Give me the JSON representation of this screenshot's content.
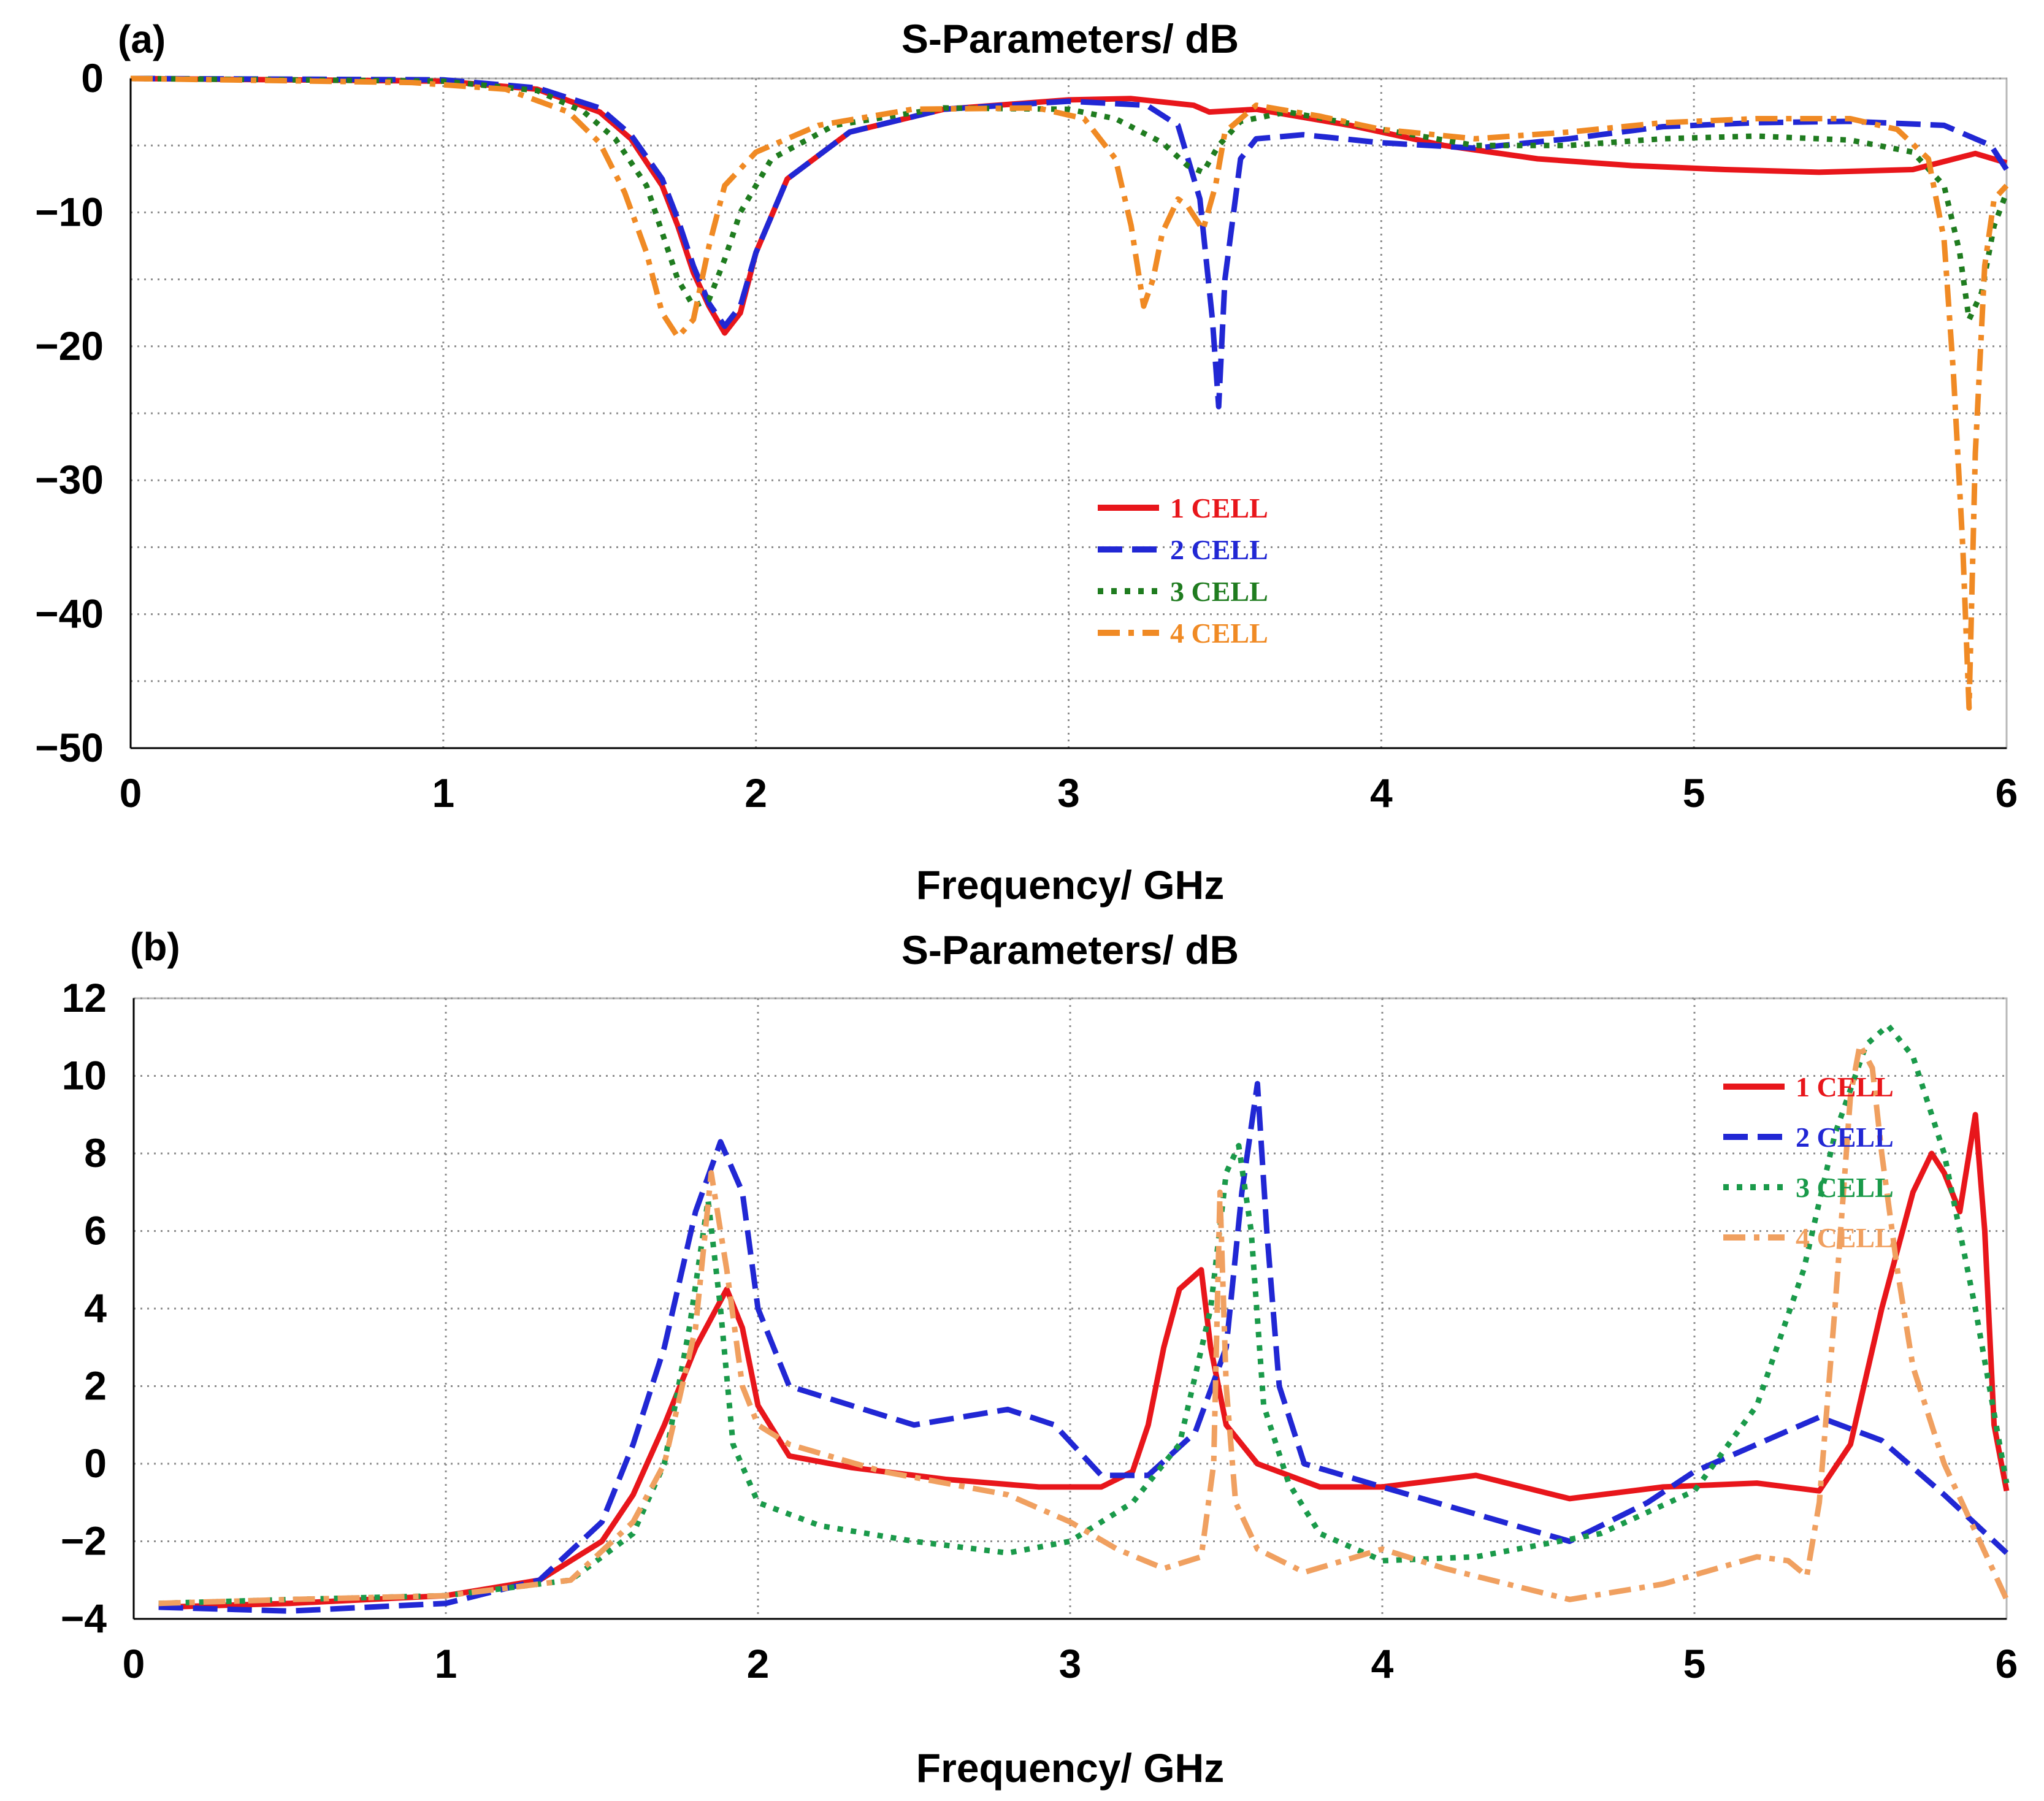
{
  "chart_data": [
    {
      "type": "line",
      "panel_label": "(a)",
      "title": "S-Parameters/ dB",
      "xlabel": "Frequency/ GHz",
      "ylabel": "",
      "xlim": [
        0,
        6
      ],
      "ylim": [
        -50,
        0
      ],
      "xticks": [
        0,
        1,
        2,
        3,
        4,
        5,
        6
      ],
      "xtick_labels": [
        "0",
        "1",
        "2",
        "3",
        "4",
        "5",
        "6"
      ],
      "yticks": [
        0,
        -10,
        -20,
        -30,
        -40,
        -50
      ],
      "ytick_labels": [
        "0",
        "−10",
        "−20",
        "−30",
        "−40",
        "−50"
      ],
      "ygrid": [
        -5,
        -15,
        -25,
        -35,
        -45
      ],
      "grid": true,
      "legend_position": "center-right",
      "series": [
        {
          "name": "1 CELL",
          "color": "#e8161b",
          "dash": "solid",
          "x": [
            0,
            1.0,
            1.3,
            1.5,
            1.6,
            1.7,
            1.75,
            1.8,
            1.85,
            1.9,
            1.95,
            2.0,
            2.1,
            2.3,
            2.6,
            3.0,
            3.2,
            3.4,
            3.45,
            3.6,
            3.9,
            4.2,
            4.5,
            4.8,
            5.1,
            5.4,
            5.7,
            5.9,
            6.0
          ],
          "y": [
            0,
            -0.2,
            -0.8,
            -2.5,
            -4.5,
            -8.0,
            -11.0,
            -14.5,
            -17.0,
            -19.0,
            -17.5,
            -13.0,
            -7.5,
            -4.0,
            -2.3,
            -1.6,
            -1.5,
            -2.0,
            -2.5,
            -2.3,
            -3.5,
            -5.0,
            -6.0,
            -6.5,
            -6.8,
            -7.0,
            -6.8,
            -5.6,
            -6.3
          ]
        },
        {
          "name": "2 CELL",
          "color": "#2127d4",
          "dash": "dashed",
          "x": [
            0,
            1.0,
            1.3,
            1.5,
            1.6,
            1.7,
            1.75,
            1.8,
            1.85,
            1.9,
            1.95,
            2.0,
            2.1,
            2.3,
            2.6,
            3.0,
            3.25,
            3.35,
            3.42,
            3.46,
            3.48,
            3.5,
            3.55,
            3.6,
            3.75,
            4.0,
            4.3,
            4.6,
            4.9,
            5.2,
            5.5,
            5.8,
            5.95,
            6.0
          ],
          "y": [
            0,
            -0.1,
            -0.7,
            -2.2,
            -4.2,
            -7.5,
            -10.5,
            -14.0,
            -16.8,
            -18.5,
            -17.0,
            -13.0,
            -7.5,
            -4.0,
            -2.3,
            -1.7,
            -2.0,
            -3.5,
            -9.0,
            -18.0,
            -24.5,
            -15.0,
            -6.0,
            -4.5,
            -4.2,
            -4.8,
            -5.2,
            -4.5,
            -3.6,
            -3.3,
            -3.2,
            -3.5,
            -5.0,
            -6.8
          ]
        },
        {
          "name": "3 CELL",
          "color": "#1f7c1f",
          "dash": "dotted",
          "x": [
            0,
            1.0,
            1.3,
            1.45,
            1.55,
            1.65,
            1.7,
            1.75,
            1.8,
            1.85,
            1.9,
            1.95,
            2.05,
            2.25,
            2.6,
            3.0,
            3.15,
            3.3,
            3.38,
            3.43,
            3.48,
            3.55,
            3.7,
            4.0,
            4.3,
            4.6,
            4.9,
            5.2,
            5.5,
            5.7,
            5.8,
            5.85,
            5.88,
            5.92,
            5.96,
            6.0
          ],
          "y": [
            0,
            -0.2,
            -0.9,
            -2.5,
            -4.5,
            -8.0,
            -11.5,
            -15.0,
            -17.0,
            -16.5,
            -13.5,
            -10.0,
            -6.0,
            -3.5,
            -2.2,
            -2.3,
            -3.0,
            -4.8,
            -6.5,
            -7.0,
            -5.0,
            -3.2,
            -2.5,
            -3.8,
            -5.0,
            -5.0,
            -4.5,
            -4.3,
            -4.6,
            -5.5,
            -8.0,
            -13.0,
            -18.0,
            -16.0,
            -11.0,
            -8.5
          ]
        },
        {
          "name": "4 CELL",
          "color": "#f08a24",
          "dash": "dashdot",
          "x": [
            0,
            0.9,
            1.2,
            1.4,
            1.5,
            1.58,
            1.65,
            1.7,
            1.75,
            1.8,
            1.85,
            1.9,
            2.0,
            2.2,
            2.5,
            2.9,
            3.05,
            3.15,
            3.2,
            3.24,
            3.27,
            3.3,
            3.35,
            3.38,
            3.43,
            3.47,
            3.5,
            3.6,
            3.8,
            4.0,
            4.3,
            4.6,
            4.9,
            5.2,
            5.5,
            5.65,
            5.75,
            5.8,
            5.83,
            5.86,
            5.88,
            5.9,
            5.93,
            5.96,
            6.0
          ],
          "y": [
            0,
            -0.3,
            -0.8,
            -2.5,
            -4.8,
            -8.5,
            -13.0,
            -17.5,
            -19.3,
            -18.0,
            -12.5,
            -8.0,
            -5.5,
            -3.5,
            -2.3,
            -2.2,
            -3.0,
            -6.0,
            -11.0,
            -17.0,
            -15.0,
            -11.5,
            -9.0,
            -9.5,
            -11.3,
            -8.0,
            -4.0,
            -2.0,
            -2.8,
            -3.8,
            -4.5,
            -4.0,
            -3.3,
            -3.0,
            -3.0,
            -3.8,
            -6.0,
            -12.0,
            -22.0,
            -35.0,
            -47.0,
            -28.0,
            -14.0,
            -9.0,
            -8.0
          ]
        }
      ]
    },
    {
      "type": "line",
      "panel_label": "(b)",
      "title": "S-Parameters/ dB",
      "xlabel": "Frequency/ GHz",
      "ylabel": "",
      "xlim": [
        0,
        6
      ],
      "ylim": [
        -4,
        12
      ],
      "xticks": [
        0,
        1,
        2,
        3,
        4,
        5,
        6
      ],
      "xtick_labels": [
        "0",
        "1",
        "2",
        "3",
        "4",
        "5",
        "6"
      ],
      "yticks": [
        12,
        10,
        8,
        6,
        4,
        2,
        0,
        -2,
        -4
      ],
      "ytick_labels": [
        "12",
        "10",
        "8",
        "6",
        "4",
        "2",
        "0",
        "−2",
        "−4"
      ],
      "ygrid": [],
      "grid": true,
      "legend_position": "top-right",
      "series": [
        {
          "name": "1 CELL",
          "color": "#e8161b",
          "dash": "solid",
          "x": [
            0.08,
            0.5,
            1.0,
            1.3,
            1.5,
            1.6,
            1.7,
            1.8,
            1.9,
            1.95,
            2.0,
            2.1,
            2.3,
            2.6,
            2.9,
            3.1,
            3.2,
            3.25,
            3.3,
            3.35,
            3.42,
            3.45,
            3.5,
            3.6,
            3.8,
            4.0,
            4.3,
            4.6,
            4.9,
            5.2,
            5.4,
            5.5,
            5.6,
            5.7,
            5.76,
            5.8,
            5.85,
            5.9,
            5.93,
            5.96,
            6.0
          ],
          "y": [
            -3.7,
            -3.6,
            -3.4,
            -3.0,
            -2.0,
            -0.8,
            1.0,
            3.0,
            4.5,
            3.5,
            1.5,
            0.2,
            -0.1,
            -0.4,
            -0.6,
            -0.6,
            -0.2,
            1.0,
            3.0,
            4.5,
            5.0,
            3.0,
            1.0,
            0.0,
            -0.6,
            -0.6,
            -0.3,
            -0.9,
            -0.6,
            -0.5,
            -0.7,
            0.5,
            4.0,
            7.0,
            8.0,
            7.5,
            6.5,
            9.0,
            6.0,
            1.0,
            -0.7
          ]
        },
        {
          "name": "2 CELL",
          "color": "#2127d4",
          "dash": "dashed",
          "x": [
            0.08,
            0.5,
            1.0,
            1.3,
            1.5,
            1.6,
            1.7,
            1.8,
            1.88,
            1.95,
            2.0,
            2.1,
            2.5,
            2.8,
            2.95,
            3.1,
            3.25,
            3.4,
            3.5,
            3.55,
            3.6,
            3.63,
            3.67,
            3.75,
            4.0,
            4.3,
            4.6,
            4.85,
            5.0,
            5.2,
            5.4,
            5.6,
            5.8,
            6.0
          ],
          "y": [
            -3.7,
            -3.8,
            -3.6,
            -3.0,
            -1.5,
            0.5,
            3.0,
            6.5,
            8.3,
            7.0,
            4.0,
            2.0,
            1.0,
            1.4,
            1.0,
            -0.3,
            -0.3,
            0.8,
            3.0,
            7.0,
            9.8,
            6.0,
            2.0,
            0.0,
            -0.6,
            -1.3,
            -2.0,
            -1.0,
            -0.2,
            0.5,
            1.2,
            0.6,
            -0.8,
            -2.3
          ]
        },
        {
          "name": "3 CELL",
          "color": "#1a9a4a",
          "dash": "dotted",
          "x": [
            0.08,
            0.5,
            1.0,
            1.4,
            1.6,
            1.7,
            1.78,
            1.84,
            1.88,
            1.92,
            2.0,
            2.2,
            2.5,
            2.8,
            3.0,
            3.2,
            3.35,
            3.45,
            3.5,
            3.54,
            3.58,
            3.62,
            3.7,
            3.8,
            4.0,
            4.3,
            4.7,
            5.0,
            5.2,
            5.35,
            5.45,
            5.55,
            5.62,
            5.7,
            5.8,
            5.9,
            6.0
          ],
          "y": [
            -3.6,
            -3.5,
            -3.4,
            -3.0,
            -1.8,
            0.0,
            3.5,
            6.8,
            4.0,
            0.5,
            -1.0,
            -1.6,
            -2.0,
            -2.3,
            -2.0,
            -1.0,
            0.5,
            4.0,
            7.5,
            8.2,
            6.0,
            1.5,
            -0.5,
            -1.8,
            -2.5,
            -2.4,
            -1.8,
            -0.7,
            1.5,
            5.0,
            8.5,
            10.8,
            11.3,
            10.5,
            8.0,
            4.0,
            -0.5
          ]
        },
        {
          "name": "4 CELL",
          "color": "#f0a060",
          "dash": "dashdot",
          "x": [
            0.08,
            0.5,
            1.0,
            1.4,
            1.6,
            1.7,
            1.8,
            1.85,
            1.9,
            1.95,
            2.0,
            2.1,
            2.4,
            2.8,
            3.0,
            3.15,
            3.3,
            3.42,
            3.46,
            3.48,
            3.5,
            3.53,
            3.6,
            3.75,
            4.0,
            4.2,
            4.6,
            4.9,
            5.2,
            5.3,
            5.36,
            5.4,
            5.45,
            5.5,
            5.53,
            5.57,
            5.6,
            5.65,
            5.7,
            5.8,
            6.0
          ],
          "y": [
            -3.6,
            -3.5,
            -3.4,
            -3.0,
            -1.5,
            0.0,
            3.5,
            7.5,
            5.0,
            2.0,
            1.0,
            0.5,
            -0.2,
            -0.8,
            -1.5,
            -2.2,
            -2.7,
            -2.4,
            0.0,
            7.0,
            2.0,
            -1.0,
            -2.2,
            -2.8,
            -2.2,
            -2.7,
            -3.5,
            -3.1,
            -2.4,
            -2.5,
            -2.9,
            -1.0,
            4.0,
            9.5,
            10.8,
            10.2,
            8.0,
            5.0,
            2.5,
            0.0,
            -3.5
          ]
        }
      ]
    }
  ]
}
